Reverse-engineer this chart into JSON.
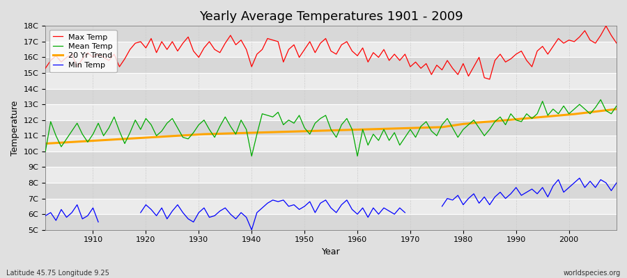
{
  "years": [
    1901,
    1902,
    1903,
    1904,
    1905,
    1906,
    1907,
    1908,
    1909,
    1910,
    1911,
    1912,
    1913,
    1914,
    1915,
    1916,
    1917,
    1918,
    1919,
    1920,
    1921,
    1922,
    1923,
    1924,
    1925,
    1926,
    1927,
    1928,
    1929,
    1930,
    1931,
    1932,
    1933,
    1934,
    1935,
    1936,
    1937,
    1938,
    1939,
    1940,
    1941,
    1942,
    1943,
    1944,
    1945,
    1946,
    1947,
    1948,
    1949,
    1950,
    1951,
    1952,
    1953,
    1954,
    1955,
    1956,
    1957,
    1958,
    1959,
    1960,
    1961,
    1962,
    1963,
    1964,
    1965,
    1966,
    1967,
    1968,
    1969,
    1970,
    1971,
    1972,
    1973,
    1974,
    1975,
    1976,
    1977,
    1978,
    1979,
    1980,
    1981,
    1982,
    1983,
    1984,
    1985,
    1986,
    1987,
    1988,
    1989,
    1990,
    1991,
    1992,
    1993,
    1994,
    1995,
    1996,
    1997,
    1998,
    1999,
    2000,
    2001,
    2002,
    2003,
    2004,
    2005,
    2006,
    2007,
    2008,
    2009
  ],
  "max_temps": [
    15.3,
    15.8,
    16.1,
    15.7,
    16.0,
    16.2,
    15.4,
    15.9,
    16.3,
    16.0,
    16.2,
    16.0,
    15.8,
    16.2,
    15.4,
    15.9,
    16.5,
    16.9,
    17.0,
    16.6,
    17.2,
    16.3,
    17.0,
    16.5,
    17.0,
    16.4,
    16.9,
    17.3,
    16.4,
    16.0,
    16.6,
    17.0,
    16.5,
    16.3,
    16.9,
    17.4,
    16.8,
    17.1,
    16.5,
    15.4,
    16.2,
    16.5,
    17.2,
    17.1,
    17.0,
    15.7,
    16.5,
    16.8,
    16.0,
    16.5,
    17.0,
    16.3,
    16.9,
    17.2,
    16.4,
    16.2,
    16.8,
    17.0,
    16.4,
    16.1,
    16.6,
    15.7,
    16.3,
    16.0,
    16.5,
    15.8,
    16.2,
    15.8,
    16.2,
    15.4,
    15.7,
    15.3,
    15.6,
    14.9,
    15.5,
    15.2,
    15.8,
    15.3,
    14.9,
    15.6,
    14.8,
    15.4,
    16.0,
    14.7,
    14.6,
    15.8,
    16.2,
    15.7,
    15.9,
    16.2,
    16.4,
    15.8,
    15.4,
    16.4,
    16.7,
    16.2,
    16.7,
    17.2,
    16.9,
    17.1,
    17.0,
    17.3,
    17.7,
    17.1,
    16.9,
    17.4,
    18.0,
    17.4,
    16.9
  ],
  "mean_temps": [
    10.0,
    11.9,
    11.0,
    10.3,
    10.8,
    11.3,
    11.8,
    11.1,
    10.6,
    11.1,
    11.8,
    11.0,
    11.5,
    12.2,
    11.3,
    10.5,
    11.2,
    12.0,
    11.4,
    12.1,
    11.7,
    11.0,
    11.3,
    11.8,
    12.1,
    11.5,
    10.9,
    10.8,
    11.2,
    11.7,
    12.0,
    11.4,
    10.9,
    11.6,
    12.2,
    11.6,
    11.1,
    12.0,
    11.4,
    9.7,
    11.1,
    12.4,
    12.3,
    12.2,
    12.5,
    11.7,
    12.0,
    11.8,
    12.3,
    11.5,
    11.1,
    11.8,
    12.1,
    12.3,
    11.4,
    10.9,
    11.7,
    12.1,
    11.4,
    9.7,
    11.4,
    10.4,
    11.1,
    10.7,
    11.4,
    10.7,
    11.2,
    10.4,
    10.9,
    11.4,
    10.9,
    11.6,
    11.9,
    11.3,
    11.0,
    11.7,
    12.1,
    11.5,
    10.9,
    11.4,
    11.7,
    12.0,
    11.5,
    11.0,
    11.4,
    11.9,
    12.2,
    11.7,
    12.4,
    12.0,
    11.9,
    12.4,
    12.1,
    12.4,
    13.2,
    12.3,
    12.7,
    12.4,
    12.9,
    12.4,
    12.7,
    13.0,
    12.7,
    12.4,
    12.8,
    13.3,
    12.6,
    12.4,
    12.9
  ],
  "min_temps": [
    5.9,
    6.1,
    5.6,
    6.3,
    5.8,
    6.1,
    6.6,
    5.7,
    5.9,
    6.4,
    5.5,
    null,
    null,
    null,
    null,
    null,
    null,
    null,
    6.1,
    6.6,
    6.3,
    5.9,
    6.4,
    5.7,
    6.2,
    6.6,
    6.1,
    5.7,
    5.5,
    6.1,
    6.4,
    5.8,
    5.9,
    6.2,
    6.4,
    6.0,
    5.7,
    6.1,
    5.8,
    5.0,
    6.1,
    6.4,
    6.7,
    6.9,
    6.8,
    6.9,
    6.5,
    6.6,
    6.3,
    6.5,
    6.8,
    6.1,
    6.7,
    6.9,
    6.4,
    6.1,
    6.6,
    6.9,
    6.3,
    6.0,
    6.4,
    5.8,
    6.4,
    6.0,
    6.4,
    6.2,
    6.0,
    6.4,
    6.1,
    null,
    null,
    null,
    null,
    null,
    null,
    6.5,
    7.0,
    6.9,
    7.2,
    6.6,
    7.0,
    7.3,
    6.7,
    7.1,
    6.6,
    7.1,
    7.4,
    7.0,
    7.3,
    7.7,
    7.2,
    7.4,
    7.6,
    7.3,
    7.7,
    7.1,
    7.8,
    8.2,
    7.4,
    7.7,
    8.0,
    8.3,
    7.7,
    8.1,
    7.7,
    8.2,
    8.0,
    7.5,
    8.0
  ],
  "trend": [
    10.5,
    10.52,
    10.54,
    10.56,
    10.58,
    10.6,
    10.62,
    10.64,
    10.66,
    10.68,
    10.7,
    10.72,
    10.74,
    10.76,
    10.78,
    10.8,
    10.82,
    10.84,
    10.86,
    10.88,
    10.9,
    10.92,
    10.94,
    10.96,
    10.98,
    11.0,
    11.02,
    11.04,
    11.06,
    11.08,
    11.1,
    11.11,
    11.12,
    11.13,
    11.14,
    11.15,
    11.16,
    11.17,
    11.18,
    11.19,
    11.2,
    11.21,
    11.22,
    11.23,
    11.24,
    11.25,
    11.26,
    11.27,
    11.28,
    11.29,
    11.3,
    11.31,
    11.32,
    11.33,
    11.34,
    11.35,
    11.36,
    11.37,
    11.38,
    11.39,
    11.4,
    11.41,
    11.42,
    11.43,
    11.44,
    11.45,
    11.46,
    11.47,
    11.48,
    11.49,
    11.5,
    11.51,
    11.52,
    11.53,
    11.54,
    11.55,
    11.6,
    11.65,
    11.7,
    11.75,
    11.78,
    11.82,
    11.85,
    11.88,
    11.9,
    11.93,
    11.96,
    11.99,
    12.02,
    12.05,
    12.08,
    12.11,
    12.14,
    12.17,
    12.2,
    12.23,
    12.26,
    12.29,
    12.32,
    12.35,
    12.38,
    12.42,
    12.46,
    12.5,
    12.54,
    12.58,
    12.62,
    12.66,
    12.7
  ],
  "title": "Yearly Average Temperatures 1901 - 2009",
  "xlabel": "Year",
  "ylabel": "Temperature",
  "ylim": [
    5,
    18
  ],
  "yticks": [
    5,
    6,
    7,
    8,
    9,
    10,
    11,
    12,
    13,
    14,
    15,
    16,
    17,
    18
  ],
  "ytick_labels": [
    "5C",
    "6C",
    "7C",
    "8C",
    "9C",
    "10C",
    "11C",
    "12C",
    "13C",
    "14C",
    "15C",
    "16C",
    "17C",
    "18C"
  ],
  "xticks": [
    1910,
    1920,
    1930,
    1940,
    1950,
    1960,
    1970,
    1980,
    1990,
    2000
  ],
  "xlim": [
    1901,
    2009
  ],
  "bg_color": "#e0e0e0",
  "band_light": "#ebebeb",
  "band_dark": "#d8d8d8",
  "max_color": "#ff0000",
  "mean_color": "#00aa00",
  "min_color": "#0000ff",
  "trend_color": "#ffa500",
  "subtitle_left": "Latitude 45.75 Longitude 9.25",
  "subtitle_right": "worldspecies.org",
  "legend_labels": [
    "Max Temp",
    "Mean Temp",
    "Min Temp",
    "20 Yr Trend"
  ]
}
